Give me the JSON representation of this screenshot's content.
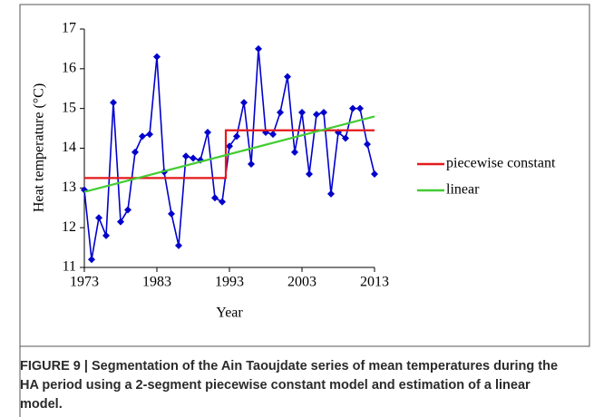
{
  "chart_data": {
    "type": "line",
    "x_label": "Year",
    "y_label": "Heat temperature (°C)",
    "xlim": [
      1973,
      2013
    ],
    "xticks": [
      1973,
      1983,
      1993,
      2003,
      2013
    ],
    "ylim": [
      11,
      17
    ],
    "yticks": [
      11,
      12,
      13,
      14,
      15,
      16,
      17
    ],
    "legend": "right",
    "series": [
      {
        "color": "#0000cc",
        "marker": "diamond",
        "x": [
          1973,
          1974,
          1975,
          1976,
          1977,
          1978,
          1979,
          1980,
          1981,
          1982,
          1983,
          1984,
          1985,
          1986,
          1987,
          1988,
          1989,
          1990,
          1991,
          1992,
          1993,
          1994,
          1995,
          1996,
          1997,
          1998,
          1999,
          2000,
          2001,
          2002,
          2003,
          2004,
          2005,
          2006,
          2007,
          2008,
          2009,
          2010,
          2011,
          2012,
          2013
        ],
        "values": [
          12.95,
          11.2,
          12.25,
          11.8,
          15.15,
          12.15,
          12.45,
          13.9,
          14.3,
          14.35,
          16.3,
          13.4,
          12.35,
          11.55,
          13.8,
          13.75,
          13.7,
          14.4,
          12.75,
          12.65,
          14.05,
          14.3,
          15.15,
          13.6,
          16.5,
          14.4,
          14.35,
          14.9,
          15.8,
          13.9,
          14.9,
          13.35,
          14.85,
          14.9,
          12.85,
          14.4,
          14.25,
          15.0,
          15.0,
          14.1,
          13.35
        ]
      },
      {
        "name": "piecewise constant",
        "color": "#e41a1c",
        "x": [
          1973,
          1992.5,
          1992.5,
          2013
        ],
        "values": [
          13.25,
          13.25,
          14.45,
          14.45
        ]
      },
      {
        "name": "linear",
        "color": "#44cc33",
        "x": [
          1973,
          2013
        ],
        "values": [
          12.9,
          14.8
        ]
      }
    ]
  },
  "caption": "FIGURE 9 | Segmentation of the Ain Taoujdate series of mean temperatures during the HA period using a 2-segment piecewise constant model and estimation of a linear model."
}
